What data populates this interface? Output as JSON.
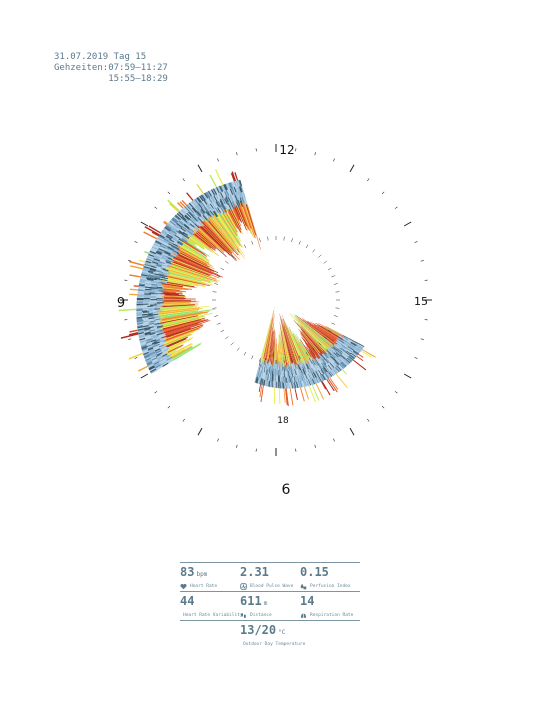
{
  "header": {
    "date_line": "31.07.2019 Tag 15",
    "times_label": "Gehzeiten:",
    "times": [
      "07:59–11:27",
      "15:55–18:29"
    ]
  },
  "chart_data": {
    "type": "radial-heatmap",
    "clock_labels": [
      "12",
      "15",
      "18",
      "9",
      "6"
    ],
    "palette": [
      "#8fb8d6",
      "#b7d2e6",
      "#5f8cab",
      "#3a5566",
      "#7fe07a",
      "#b5ec5a",
      "#e9f04e",
      "#f6cf45",
      "#f4a539",
      "#ef7a2e",
      "#e3502a",
      "#b02a1c"
    ],
    "segments": [
      {
        "start_h": 7.98,
        "end_h": 11.45
      },
      {
        "start_h": 15.92,
        "end_h": 18.48
      }
    ]
  },
  "stats": {
    "row1": [
      {
        "value": "83",
        "unit": "bpm",
        "label": "Heart Rate",
        "icon": "heart-icon"
      },
      {
        "value": "2.31",
        "unit": "",
        "label": "Blood Pulse Wave",
        "icon": "pulse-wave-icon"
      },
      {
        "value": "0.15",
        "unit": "",
        "label": "Perfusion Index",
        "icon": "drop-icon"
      }
    ],
    "row2": [
      {
        "value": "44",
        "unit": "",
        "label": "Heart Rate Variability",
        "icon": "heart-pulse-icon"
      },
      {
        "value": "611",
        "unit": "m",
        "label": "Distance",
        "icon": "footprints-icon"
      },
      {
        "value": "14",
        "unit": "",
        "label": "Respiration Rate",
        "icon": "lungs-icon"
      }
    ],
    "row3": {
      "value": "13/20",
      "unit": "°C",
      "label": "Outdoor Day Temperature",
      "icon": "thermometer-icon"
    }
  }
}
